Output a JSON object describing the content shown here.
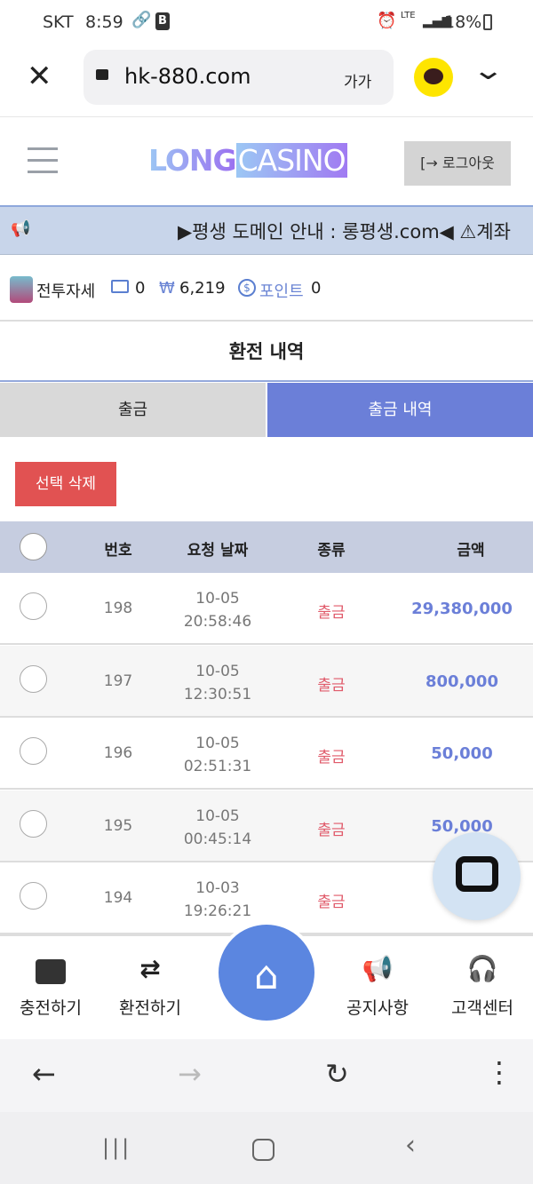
{
  "status_bar": {
    "carrier": "SKT",
    "time": "8:59",
    "network": "LTE",
    "battery": "18%"
  },
  "browser": {
    "url": "hk-880.com",
    "text_size_label": "가가"
  },
  "header": {
    "logo_part1": "LONG",
    "logo_part2": "CASINO",
    "logout_label": "로그아웃"
  },
  "notice": {
    "text": "▶평생 도메인 안내 : 롱평생.com◀ ⚠계좌"
  },
  "user": {
    "name": "전투자세",
    "messages": "0",
    "currency_symbol": "₩",
    "balance": "6,219",
    "points_label": "포인트",
    "points": "0"
  },
  "page_title": "환전 내역",
  "tabs": [
    {
      "label": "출금",
      "active": false
    },
    {
      "label": "출금 내역",
      "active": true
    }
  ],
  "delete_button": "선택 삭제",
  "table": {
    "headers": [
      "번호",
      "요청 날짜",
      "종류",
      "금액"
    ],
    "rows": [
      {
        "no": "198",
        "date": "10-05",
        "time": "20:58:46",
        "type": "출금",
        "amount": "29,380,000"
      },
      {
        "no": "197",
        "date": "10-05",
        "time": "12:30:51",
        "type": "출금",
        "amount": "800,000"
      },
      {
        "no": "196",
        "date": "10-05",
        "time": "02:51:31",
        "type": "출금",
        "amount": "50,000"
      },
      {
        "no": "195",
        "date": "10-05",
        "time": "00:45:14",
        "type": "출금",
        "amount": "50,000"
      },
      {
        "no": "194",
        "date": "10-03",
        "time": "19:26:21",
        "type": "출금",
        "amount": ""
      }
    ]
  },
  "bottom_nav": [
    {
      "label": "충전하기",
      "icon": "wallet-icon"
    },
    {
      "label": "환전하기",
      "icon": "exchange-icon"
    },
    {
      "label": "",
      "icon": "home-icon"
    },
    {
      "label": "공지사항",
      "icon": "megaphone-icon"
    },
    {
      "label": "고객센터",
      "icon": "headset-icon"
    }
  ],
  "colors": {
    "accent": "#6b7fd8",
    "home": "#5b86e0",
    "danger": "#e15252",
    "amount": "#6b7fd8",
    "type": "#e05a6a"
  }
}
